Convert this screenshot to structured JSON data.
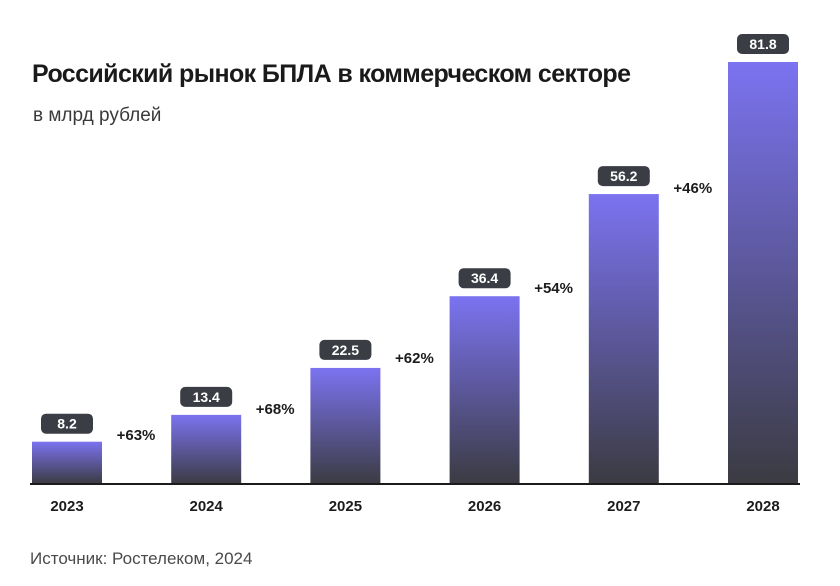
{
  "header": {
    "title": "Российский рынок БПЛА в коммерческом секторе",
    "subtitle": "в млрд рублей"
  },
  "footer": {
    "source": "Источник: Ростелеком, 2024"
  },
  "colors": {
    "bar_top": "#7b73f0",
    "bar_bottom": "#3b3b42",
    "label_bg": "#3a3d44",
    "axis": "#1c1c1c"
  },
  "chart_data": {
    "type": "bar",
    "title": "Российский рынок БПЛА в коммерческом секторе",
    "subtitle": "в млрд рублей",
    "xlabel": "",
    "ylabel": "",
    "ylim": [
      0,
      85
    ],
    "grid": false,
    "legend": "none",
    "categories": [
      "2023",
      "2024",
      "2025",
      "2026",
      "2027",
      "2028"
    ],
    "values": [
      8.2,
      13.4,
      22.5,
      36.4,
      56.2,
      81.8
    ],
    "value_labels": [
      "8.2",
      "13.4",
      "22.5",
      "36.4",
      "56.2",
      "81.8"
    ],
    "growth_labels": [
      "+63%",
      "+68%",
      "+62%",
      "+54%",
      "+46%"
    ]
  }
}
